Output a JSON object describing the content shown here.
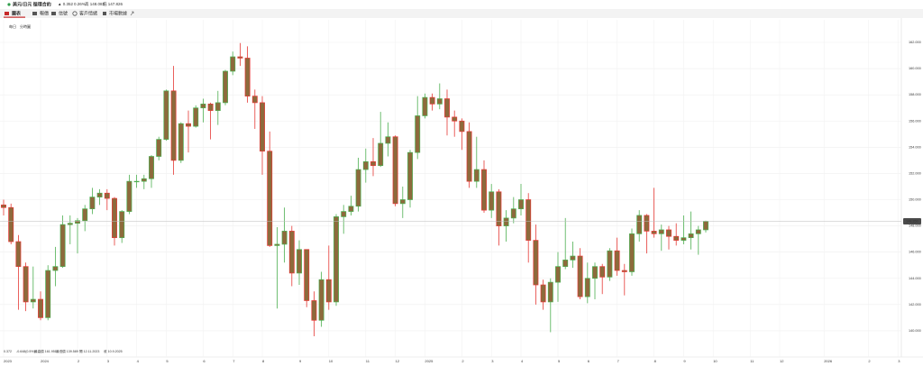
{
  "header": {
    "symbol": "美元/日元 循環合約",
    "change": "▲ 0.352",
    "change_pct": "0.26%",
    "high": "高 148.083",
    "low": "低 147.826"
  },
  "tabs": [
    "圖表",
    "報價",
    "信號",
    "客戶情緒",
    "市場數據"
  ],
  "views": [
    "每日",
    "分時圖"
  ],
  "chart_data": {
    "type": "candlestick",
    "info": [
      "0.372",
      "-0.648(0.5%)",
      "最高價 161.951",
      "最低價 139.589",
      "開 12.11.2023",
      "收 10.9.2025"
    ],
    "categories": [
      "2023",
      null,
      null,
      null,
      null,
      "2024",
      null,
      null,
      null,
      null,
      "2",
      null,
      null,
      null,
      "3",
      null,
      null,
      null,
      "4",
      null,
      null,
      null,
      "5",
      null,
      null,
      null,
      null,
      "6",
      null,
      null,
      null,
      "7",
      null,
      null,
      null,
      "8",
      null,
      null,
      null,
      null,
      "9",
      null,
      null,
      null,
      "10",
      null,
      null,
      null,
      null,
      "11",
      null,
      null,
      null,
      "12",
      null,
      null,
      null,
      "2025",
      null,
      null,
      null,
      null,
      "2",
      null,
      null,
      null,
      "3",
      null,
      null,
      null,
      "4",
      null,
      null,
      null,
      null,
      "5",
      null,
      null,
      null,
      "6",
      null,
      null,
      null,
      "7",
      null,
      null,
      null,
      null,
      "8",
      null,
      null,
      null,
      "9",
      null,
      null,
      null,
      "10",
      null,
      null,
      null,
      null,
      "11",
      null,
      null,
      null,
      "12",
      null,
      null,
      null,
      null,
      null,
      "2026",
      null,
      null,
      null,
      null,
      null,
      "2",
      null,
      null,
      null,
      "3"
    ],
    "open": [
      149.6,
      149.4,
      146.8,
      144.9,
      142.2,
      142.4,
      141.0,
      144.6,
      144.9,
      148.1,
      148.2,
      148.4,
      149.3,
      150.2,
      150.5,
      150.1,
      147.1,
      149.1,
      151.4,
      151.4,
      151.6,
      153.3,
      154.6,
      158.3,
      153.0,
      155.8,
      155.6,
      157.0,
      157.3,
      156.8,
      157.4,
      159.8,
      160.9,
      160.8,
      157.9,
      157.4,
      153.7,
      146.5,
      146.6,
      147.6,
      144.4,
      146.2,
      142.3,
      140.8,
      143.9,
      142.2,
      148.7,
      149.1,
      149.5,
      152.3,
      152.9,
      152.6,
      154.3,
      154.8,
      149.7,
      150.0,
      153.6,
      156.4,
      157.8,
      157.3,
      157.7,
      156.3,
      156.0,
      155.2,
      151.4,
      152.3,
      149.2,
      150.6,
      148.0,
      148.6,
      149.3,
      150.0,
      146.9,
      143.5,
      142.2,
      143.7,
      144.9,
      145.4,
      145.7,
      142.6,
      144.0,
      144.9,
      144.1,
      146.1,
      144.6,
      144.5,
      147.4,
      148.8,
      147.6,
      147.4,
      147.7,
      147.2,
      146.9,
      147.1,
      147.4,
      147.7,
      null,
      null,
      null,
      null,
      null,
      null,
      null,
      null,
      null,
      null,
      null,
      null,
      null,
      null,
      null,
      null,
      null,
      null,
      null,
      null,
      null,
      null,
      null,
      null,
      null,
      null
    ],
    "high": [
      150.0,
      149.7,
      147.3,
      145.2,
      144.9,
      143.0,
      145.0,
      146.4,
      148.8,
      148.8,
      148.6,
      149.6,
      150.9,
      150.8,
      150.8,
      150.2,
      149.2,
      151.9,
      151.9,
      151.9,
      153.4,
      154.8,
      158.4,
      160.2,
      155.9,
      156.8,
      157.2,
      157.7,
      157.4,
      158.3,
      159.9,
      161.3,
      161.95,
      161.7,
      158.4,
      157.9,
      155.2,
      147.9,
      149.4,
      148.0,
      146.9,
      146.2,
      143.0,
      144.5,
      146.5,
      148.9,
      149.6,
      150.3,
      153.2,
      153.9,
      154.7,
      156.7,
      155.9,
      154.9,
      151.0,
      153.8,
      157.9,
      158.1,
      158.1,
      158.87,
      158.4,
      156.8,
      156.2,
      155.9,
      154.8,
      153.0,
      151.2,
      150.8,
      149.2,
      150.2,
      151.2,
      150.5,
      148.1,
      143.9,
      144.0,
      146.0,
      148.6,
      146.8,
      146.3,
      145.2,
      145.2,
      145.1,
      146.3,
      147.1,
      145.1,
      147.8,
      149.2,
      148.9,
      150.9,
      148.1,
      148.0,
      148.2,
      148.8,
      149.1,
      148.0,
      148.4,
      null,
      null,
      null,
      null,
      null,
      null,
      null,
      null,
      null,
      null,
      null,
      null,
      null,
      null,
      null,
      null,
      null,
      null,
      null,
      null,
      null,
      null,
      null,
      null,
      null,
      null
    ],
    "low": [
      148.8,
      146.6,
      141.6,
      141.5,
      141.7,
      140.8,
      140.8,
      143.4,
      144.8,
      146.6,
      145.9,
      147.6,
      148.9,
      149.6,
      149.2,
      146.5,
      146.7,
      148.9,
      150.9,
      150.8,
      150.9,
      153.0,
      154.5,
      151.9,
      152.8,
      153.6,
      155.5,
      155.9,
      154.6,
      155.7,
      157.2,
      159.5,
      160.2,
      157.4,
      155.4,
      151.9,
      146.4,
      141.7,
      145.2,
      143.4,
      143.5,
      141.8,
      139.58,
      140.3,
      141.6,
      141.9,
      147.4,
      148.8,
      149.1,
      151.3,
      151.8,
      152.5,
      153.3,
      149.5,
      148.6,
      149.4,
      153.1,
      156.2,
      156.8,
      156.9,
      154.9,
      154.8,
      153.8,
      150.9,
      150.9,
      149.0,
      148.6,
      146.5,
      146.8,
      148.2,
      148.8,
      145.2,
      142.0,
      141.6,
      139.89,
      142.2,
      144.7,
      144.8,
      142.4,
      142.1,
      142.4,
      142.8,
      143.8,
      144.2,
      142.7,
      144.2,
      146.8,
      145.9,
      147.1,
      146.1,
      146.2,
      146.5,
      146.6,
      146.2,
      145.8,
      147.5,
      null,
      null,
      null,
      null,
      null,
      null,
      null,
      null,
      null,
      null,
      null,
      null,
      null,
      null,
      null,
      null,
      null,
      null,
      null,
      null,
      null,
      null,
      null,
      null,
      null,
      null
    ],
    "close": [
      149.4,
      146.8,
      144.9,
      142.2,
      142.4,
      141.0,
      144.6,
      144.9,
      148.1,
      148.2,
      148.4,
      149.3,
      150.2,
      150.5,
      150.1,
      147.1,
      149.1,
      151.4,
      151.4,
      151.6,
      153.3,
      154.6,
      158.3,
      153.0,
      155.8,
      155.6,
      157.0,
      157.3,
      156.8,
      157.4,
      159.8,
      160.9,
      160.8,
      157.9,
      157.4,
      153.7,
      146.5,
      146.6,
      147.6,
      144.4,
      146.2,
      142.3,
      140.8,
      143.9,
      142.2,
      148.7,
      149.1,
      149.5,
      152.3,
      152.9,
      152.6,
      154.3,
      154.8,
      149.7,
      150.0,
      153.6,
      156.4,
      157.8,
      157.3,
      157.7,
      156.3,
      156.0,
      155.2,
      151.4,
      152.3,
      149.2,
      150.6,
      148.0,
      148.6,
      149.3,
      150.0,
      146.9,
      143.5,
      142.2,
      143.7,
      144.9,
      145.4,
      145.7,
      142.6,
      144.0,
      144.9,
      144.1,
      146.1,
      144.6,
      144.5,
      147.4,
      148.8,
      147.6,
      147.4,
      147.7,
      147.2,
      146.9,
      147.1,
      147.4,
      147.7,
      148.35,
      null,
      null,
      null,
      null,
      null,
      null,
      null,
      null,
      null,
      null,
      null,
      null,
      null,
      null,
      null,
      null,
      null,
      null,
      null,
      null,
      null,
      null,
      null,
      null,
      null,
      null
    ],
    "up_color": "#4caf50",
    "down_color": "#e53935",
    "body_color": "#8d6a3c",
    "ylim": [
      138,
      163.72
    ],
    "yticks": [
      {
        "value": 140,
        "label": "140.000"
      },
      {
        "value": 142,
        "label": "142.000"
      },
      {
        "value": 144,
        "label": "144.000"
      },
      {
        "value": 146,
        "label": "146.000"
      },
      {
        "value": 148,
        "label": "148.000"
      },
      {
        "value": 150,
        "label": "150.000"
      },
      {
        "value": 152,
        "label": "152.000"
      },
      {
        "value": 154,
        "label": "154.000"
      },
      {
        "value": 156,
        "label": "156.000"
      },
      {
        "value": 158,
        "label": "158.000"
      },
      {
        "value": 160,
        "label": "160.000"
      },
      {
        "value": 162,
        "label": "162.000"
      }
    ],
    "grid": true,
    "price_line": {
      "value": 148.35,
      "label": "148.350"
    }
  }
}
